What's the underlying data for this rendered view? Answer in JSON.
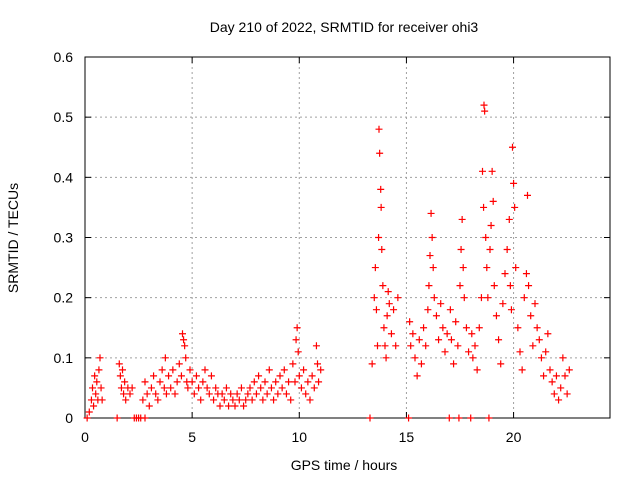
{
  "chart_data": {
    "type": "scatter",
    "title": "Day 210 of 2022, SRMTID for receiver ohi3",
    "xlabel": "GPS time / hours",
    "ylabel": "SRMTID / TECUs",
    "xlim": [
      0,
      24.5
    ],
    "ylim": [
      0,
      0.6
    ],
    "x_ticks": [
      0,
      5,
      10,
      15,
      20
    ],
    "y_ticks": [
      0,
      0.1,
      0.2,
      0.3,
      0.4,
      0.5,
      0.6
    ],
    "x_tick_labels": [
      "0",
      "5",
      "10",
      "15",
      "20"
    ],
    "y_tick_labels": [
      "0",
      "0.1",
      "0.2",
      "0.3",
      "0.4",
      "0.5",
      "0.6"
    ],
    "grid": true,
    "marker": "+",
    "colors": {
      "series": "#ff0000",
      "grid": "#a0a0a0",
      "axis": "#000000"
    },
    "series": [
      {
        "name": "SRMTID",
        "points": [
          [
            0.1,
            0.0
          ],
          [
            0.2,
            0.01
          ],
          [
            0.3,
            0.03
          ],
          [
            0.35,
            0.05
          ],
          [
            0.4,
            0.02
          ],
          [
            0.45,
            0.07
          ],
          [
            0.5,
            0.04
          ],
          [
            0.55,
            0.06
          ],
          [
            0.6,
            0.03
          ],
          [
            0.65,
            0.08
          ],
          [
            0.7,
            0.1
          ],
          [
            0.75,
            0.05
          ],
          [
            0.8,
            0.03
          ],
          [
            1.5,
            0.0
          ],
          [
            1.6,
            0.09
          ],
          [
            1.65,
            0.07
          ],
          [
            1.7,
            0.05
          ],
          [
            1.75,
            0.08
          ],
          [
            1.8,
            0.04
          ],
          [
            1.85,
            0.06
          ],
          [
            1.9,
            0.03
          ],
          [
            2.0,
            0.05
          ],
          [
            2.1,
            0.04
          ],
          [
            2.2,
            0.05
          ],
          [
            2.3,
            0.0
          ],
          [
            2.4,
            0.0
          ],
          [
            2.5,
            0.0
          ],
          [
            2.6,
            0.0
          ],
          [
            2.8,
            0.0
          ],
          [
            2.7,
            0.03
          ],
          [
            2.8,
            0.06
          ],
          [
            2.9,
            0.04
          ],
          [
            3.0,
            0.02
          ],
          [
            3.1,
            0.05
          ],
          [
            3.2,
            0.07
          ],
          [
            3.3,
            0.04
          ],
          [
            3.4,
            0.03
          ],
          [
            3.5,
            0.06
          ],
          [
            3.6,
            0.08
          ],
          [
            3.7,
            0.05
          ],
          [
            3.75,
            0.1
          ],
          [
            3.8,
            0.04
          ],
          [
            3.9,
            0.07
          ],
          [
            4.0,
            0.05
          ],
          [
            4.1,
            0.08
          ],
          [
            4.2,
            0.04
          ],
          [
            4.3,
            0.06
          ],
          [
            4.4,
            0.09
          ],
          [
            4.5,
            0.07
          ],
          [
            4.55,
            0.14
          ],
          [
            4.6,
            0.13
          ],
          [
            4.65,
            0.12
          ],
          [
            4.7,
            0.1
          ],
          [
            4.75,
            0.06
          ],
          [
            4.8,
            0.05
          ],
          [
            4.9,
            0.08
          ],
          [
            5.0,
            0.06
          ],
          [
            5.1,
            0.04
          ],
          [
            5.2,
            0.07
          ],
          [
            5.3,
            0.05
          ],
          [
            5.4,
            0.03
          ],
          [
            5.5,
            0.06
          ],
          [
            5.6,
            0.08
          ],
          [
            5.7,
            0.05
          ],
          [
            5.8,
            0.04
          ],
          [
            5.9,
            0.07
          ],
          [
            6.0,
            0.03
          ],
          [
            6.1,
            0.05
          ],
          [
            6.2,
            0.04
          ],
          [
            6.3,
            0.02
          ],
          [
            6.4,
            0.04
          ],
          [
            6.5,
            0.03
          ],
          [
            6.6,
            0.05
          ],
          [
            6.7,
            0.02
          ],
          [
            6.8,
            0.04
          ],
          [
            6.9,
            0.03
          ],
          [
            7.0,
            0.02
          ],
          [
            7.1,
            0.04
          ],
          [
            7.2,
            0.03
          ],
          [
            7.3,
            0.05
          ],
          [
            7.4,
            0.02
          ],
          [
            7.5,
            0.03
          ],
          [
            7.6,
            0.04
          ],
          [
            7.7,
            0.05
          ],
          [
            7.8,
            0.03
          ],
          [
            7.9,
            0.06
          ],
          [
            8.0,
            0.04
          ],
          [
            8.1,
            0.07
          ],
          [
            8.2,
            0.05
          ],
          [
            8.3,
            0.03
          ],
          [
            8.4,
            0.06
          ],
          [
            8.5,
            0.04
          ],
          [
            8.6,
            0.08
          ],
          [
            8.7,
            0.05
          ],
          [
            8.8,
            0.03
          ],
          [
            8.9,
            0.06
          ],
          [
            9.0,
            0.04
          ],
          [
            9.1,
            0.07
          ],
          [
            9.2,
            0.05
          ],
          [
            9.3,
            0.08
          ],
          [
            9.4,
            0.04
          ],
          [
            9.5,
            0.06
          ],
          [
            9.6,
            0.03
          ],
          [
            9.7,
            0.09
          ],
          [
            9.8,
            0.06
          ],
          [
            9.85,
            0.13
          ],
          [
            9.9,
            0.15
          ],
          [
            9.95,
            0.11
          ],
          [
            10.0,
            0.07
          ],
          [
            10.1,
            0.05
          ],
          [
            10.2,
            0.08
          ],
          [
            10.3,
            0.04
          ],
          [
            10.4,
            0.06
          ],
          [
            10.5,
            0.03
          ],
          [
            10.6,
            0.07
          ],
          [
            10.7,
            0.05
          ],
          [
            10.8,
            0.12
          ],
          [
            10.85,
            0.09
          ],
          [
            10.9,
            0.06
          ],
          [
            11.0,
            0.08
          ],
          [
            13.3,
            0.0
          ],
          [
            13.4,
            0.09
          ],
          [
            13.5,
            0.2
          ],
          [
            13.55,
            0.25
          ],
          [
            13.6,
            0.18
          ],
          [
            13.65,
            0.12
          ],
          [
            13.7,
            0.3
          ],
          [
            13.72,
            0.48
          ],
          [
            13.75,
            0.44
          ],
          [
            13.8,
            0.38
          ],
          [
            13.82,
            0.35
          ],
          [
            13.85,
            0.28
          ],
          [
            13.9,
            0.22
          ],
          [
            13.95,
            0.15
          ],
          [
            14.0,
            0.12
          ],
          [
            14.05,
            0.1
          ],
          [
            14.1,
            0.17
          ],
          [
            14.15,
            0.21
          ],
          [
            14.2,
            0.19
          ],
          [
            14.3,
            0.14
          ],
          [
            14.4,
            0.18
          ],
          [
            14.5,
            0.12
          ],
          [
            14.6,
            0.2
          ],
          [
            15.1,
            0.0
          ],
          [
            15.15,
            0.16
          ],
          [
            15.2,
            0.12
          ],
          [
            15.3,
            0.14
          ],
          [
            15.4,
            0.1
          ],
          [
            15.5,
            0.07
          ],
          [
            15.6,
            0.13
          ],
          [
            15.7,
            0.09
          ],
          [
            15.8,
            0.15
          ],
          [
            15.9,
            0.12
          ],
          [
            16.0,
            0.18
          ],
          [
            16.05,
            0.22
          ],
          [
            16.1,
            0.27
          ],
          [
            16.15,
            0.34
          ],
          [
            16.2,
            0.3
          ],
          [
            16.25,
            0.25
          ],
          [
            16.3,
            0.2
          ],
          [
            16.4,
            0.17
          ],
          [
            16.5,
            0.13
          ],
          [
            16.6,
            0.19
          ],
          [
            16.7,
            0.15
          ],
          [
            16.8,
            0.11
          ],
          [
            16.9,
            0.14
          ],
          [
            17.0,
            0.0
          ],
          [
            17.05,
            0.18
          ],
          [
            17.1,
            0.13
          ],
          [
            17.2,
            0.09
          ],
          [
            17.3,
            0.16
          ],
          [
            17.4,
            0.12
          ],
          [
            17.45,
            0.0
          ],
          [
            17.5,
            0.22
          ],
          [
            17.55,
            0.28
          ],
          [
            17.6,
            0.33
          ],
          [
            17.65,
            0.25
          ],
          [
            17.7,
            0.2
          ],
          [
            17.8,
            0.15
          ],
          [
            17.9,
            0.11
          ],
          [
            18.0,
            0.0
          ],
          [
            18.05,
            0.14
          ],
          [
            18.1,
            0.1
          ],
          [
            18.2,
            0.12
          ],
          [
            18.3,
            0.08
          ],
          [
            18.4,
            0.15
          ],
          [
            18.5,
            0.2
          ],
          [
            18.55,
            0.41
          ],
          [
            18.6,
            0.35
          ],
          [
            18.62,
            0.52
          ],
          [
            18.65,
            0.51
          ],
          [
            18.7,
            0.3
          ],
          [
            18.75,
            0.25
          ],
          [
            18.8,
            0.2
          ],
          [
            18.85,
            0.0
          ],
          [
            18.9,
            0.28
          ],
          [
            18.95,
            0.32
          ],
          [
            19.0,
            0.41
          ],
          [
            19.05,
            0.36
          ],
          [
            19.1,
            0.22
          ],
          [
            19.2,
            0.17
          ],
          [
            19.3,
            0.13
          ],
          [
            19.4,
            0.09
          ],
          [
            19.5,
            0.19
          ],
          [
            19.6,
            0.24
          ],
          [
            19.7,
            0.28
          ],
          [
            19.8,
            0.33
          ],
          [
            19.85,
            0.22
          ],
          [
            19.9,
            0.18
          ],
          [
            19.95,
            0.45
          ],
          [
            20.0,
            0.39
          ],
          [
            20.05,
            0.35
          ],
          [
            20.1,
            0.25
          ],
          [
            20.2,
            0.15
          ],
          [
            20.3,
            0.11
          ],
          [
            20.4,
            0.08
          ],
          [
            20.5,
            0.2
          ],
          [
            20.6,
            0.24
          ],
          [
            20.65,
            0.37
          ],
          [
            20.7,
            0.22
          ],
          [
            20.8,
            0.17
          ],
          [
            20.9,
            0.12
          ],
          [
            21.0,
            0.19
          ],
          [
            21.1,
            0.15
          ],
          [
            21.2,
            0.13
          ],
          [
            21.3,
            0.1
          ],
          [
            21.4,
            0.07
          ],
          [
            21.5,
            0.11
          ],
          [
            21.6,
            0.14
          ],
          [
            21.7,
            0.08
          ],
          [
            21.8,
            0.06
          ],
          [
            21.9,
            0.04
          ],
          [
            22.0,
            0.07
          ],
          [
            22.1,
            0.03
          ],
          [
            22.2,
            0.05
          ],
          [
            22.3,
            0.1
          ],
          [
            22.4,
            0.07
          ],
          [
            22.5,
            0.04
          ],
          [
            22.6,
            0.08
          ]
        ]
      }
    ]
  }
}
